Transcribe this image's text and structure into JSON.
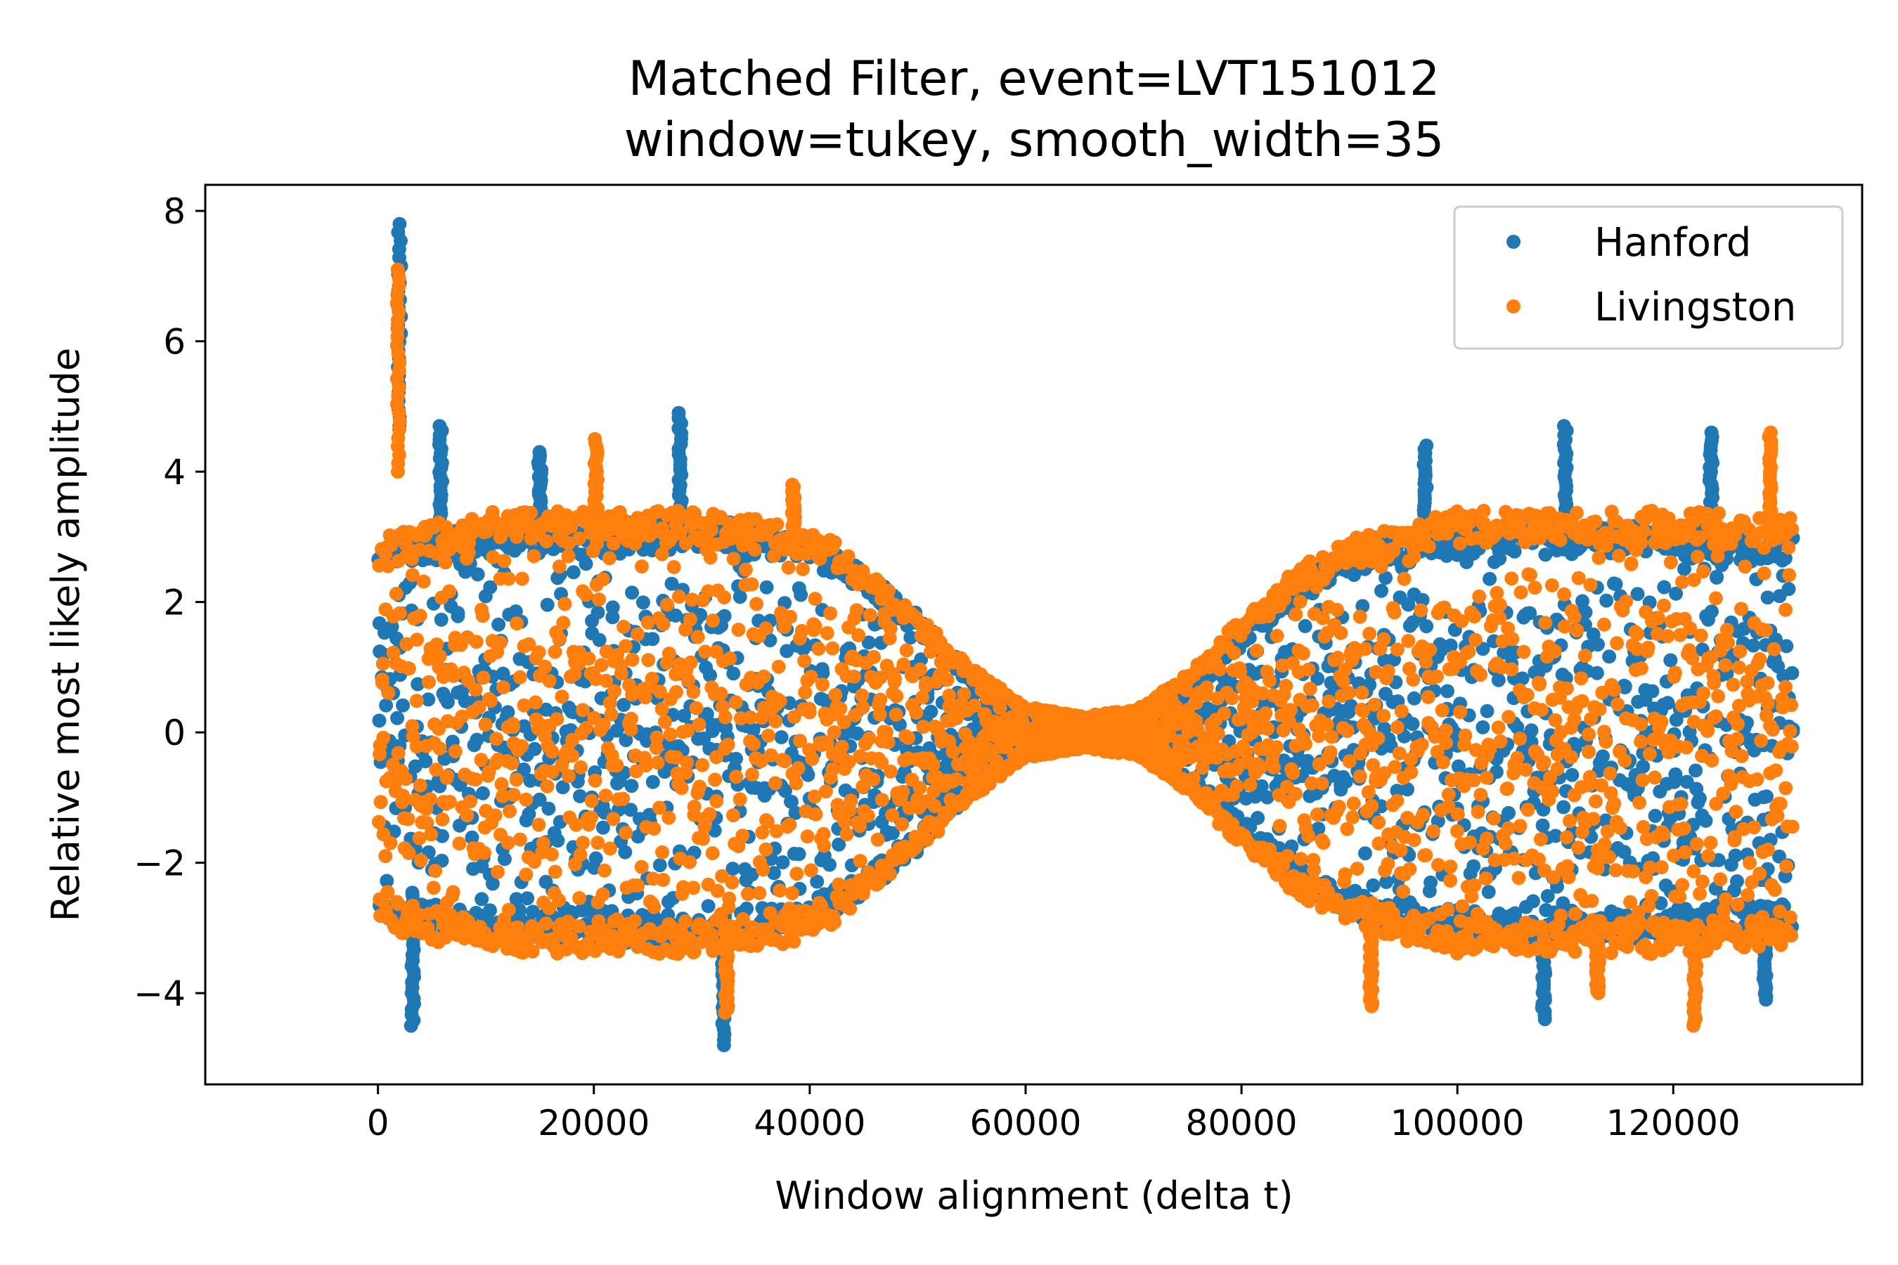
{
  "chart_data": {
    "type": "scatter",
    "title": "Matched Filter, event=LVT151012",
    "subtitle": "window=tukey, smooth_width=35",
    "xlabel": "Window alignment (delta t)",
    "ylabel": "Relative most likely amplitude",
    "xlim": [
      -16000,
      137500
    ],
    "ylim": [
      -5.4,
      8.4
    ],
    "xticks": [
      0,
      20000,
      40000,
      60000,
      80000,
      100000,
      120000
    ],
    "xtick_labels": [
      "0",
      "20000",
      "40000",
      "60000",
      "80000",
      "100000",
      "120000"
    ],
    "yticks": [
      -4,
      -2,
      0,
      2,
      4,
      6,
      8
    ],
    "ytick_labels": [
      "−4",
      "−2",
      "0",
      "2",
      "4",
      "6",
      "8"
    ],
    "grid": false,
    "legend": "top-right",
    "series": [
      {
        "name": "Hanford",
        "color": "#1f77b4",
        "envelope": [
          {
            "x": 0,
            "amp": 3.0
          },
          {
            "x": 10000,
            "amp": 3.2
          },
          {
            "x": 20000,
            "amp": 3.2
          },
          {
            "x": 30000,
            "amp": 3.3
          },
          {
            "x": 40000,
            "amp": 3.0
          },
          {
            "x": 45000,
            "amp": 2.5
          },
          {
            "x": 50000,
            "amp": 1.8
          },
          {
            "x": 55000,
            "amp": 0.9
          },
          {
            "x": 60000,
            "amp": 0.35
          },
          {
            "x": 65000,
            "amp": 0.2
          },
          {
            "x": 70000,
            "amp": 0.3
          },
          {
            "x": 75000,
            "amp": 0.8
          },
          {
            "x": 80000,
            "amp": 1.6
          },
          {
            "x": 85000,
            "amp": 2.3
          },
          {
            "x": 90000,
            "amp": 2.9
          },
          {
            "x": 100000,
            "amp": 3.2
          },
          {
            "x": 110000,
            "amp": 3.2
          },
          {
            "x": 120000,
            "amp": 3.2
          },
          {
            "x": 131000,
            "amp": 3.0
          }
        ],
        "spikes": [
          {
            "x": 2000,
            "y_max": 7.8,
            "y_min": 4.7
          },
          {
            "x": 3200,
            "y_max": -2.5,
            "y_min": -4.5
          },
          {
            "x": 5800,
            "y_max": 4.7,
            "y_min": 3.0
          },
          {
            "x": 15000,
            "y_max": 4.3,
            "y_min": 3.0
          },
          {
            "x": 28000,
            "y_max": 4.9,
            "y_min": 3.0
          },
          {
            "x": 32000,
            "y_max": -2.8,
            "y_min": -4.8
          },
          {
            "x": 108000,
            "y_max": -3.0,
            "y_min": -4.4
          },
          {
            "x": 110000,
            "y_max": 4.7,
            "y_min": 3.0
          },
          {
            "x": 97000,
            "y_max": 4.4,
            "y_min": 3.0
          },
          {
            "x": 123500,
            "y_max": 4.6,
            "y_min": 3.0
          },
          {
            "x": 128500,
            "y_max": -3.0,
            "y_min": -4.1
          }
        ]
      },
      {
        "name": "Livingston",
        "color": "#ff7f0e",
        "envelope": [
          {
            "x": 0,
            "amp": 3.0
          },
          {
            "x": 10000,
            "amp": 3.4
          },
          {
            "x": 20000,
            "amp": 3.4
          },
          {
            "x": 30000,
            "amp": 3.4
          },
          {
            "x": 40000,
            "amp": 3.2
          },
          {
            "x": 45000,
            "amp": 2.6
          },
          {
            "x": 50000,
            "amp": 1.8
          },
          {
            "x": 55000,
            "amp": 1.0
          },
          {
            "x": 60000,
            "amp": 0.4
          },
          {
            "x": 65000,
            "amp": 0.25
          },
          {
            "x": 70000,
            "amp": 0.35
          },
          {
            "x": 75000,
            "amp": 0.9
          },
          {
            "x": 80000,
            "amp": 1.8
          },
          {
            "x": 85000,
            "amp": 2.5
          },
          {
            "x": 90000,
            "amp": 3.0
          },
          {
            "x": 100000,
            "amp": 3.4
          },
          {
            "x": 110000,
            "amp": 3.4
          },
          {
            "x": 120000,
            "amp": 3.4
          },
          {
            "x": 131000,
            "amp": 3.3
          }
        ],
        "spikes": [
          {
            "x": 1900,
            "y_max": 7.1,
            "y_min": 4.0
          },
          {
            "x": 20200,
            "y_max": 4.5,
            "y_min": 3.0
          },
          {
            "x": 38500,
            "y_max": 3.8,
            "y_min": 3.0
          },
          {
            "x": 32300,
            "y_max": -3.0,
            "y_min": -4.3
          },
          {
            "x": 92000,
            "y_max": -3.0,
            "y_min": -4.2
          },
          {
            "x": 122000,
            "y_max": -3.2,
            "y_min": -4.5
          },
          {
            "x": 129000,
            "y_max": 4.6,
            "y_min": 3.0
          },
          {
            "x": 113000,
            "y_max": -3.2,
            "y_min": -4.0
          }
        ]
      }
    ]
  }
}
